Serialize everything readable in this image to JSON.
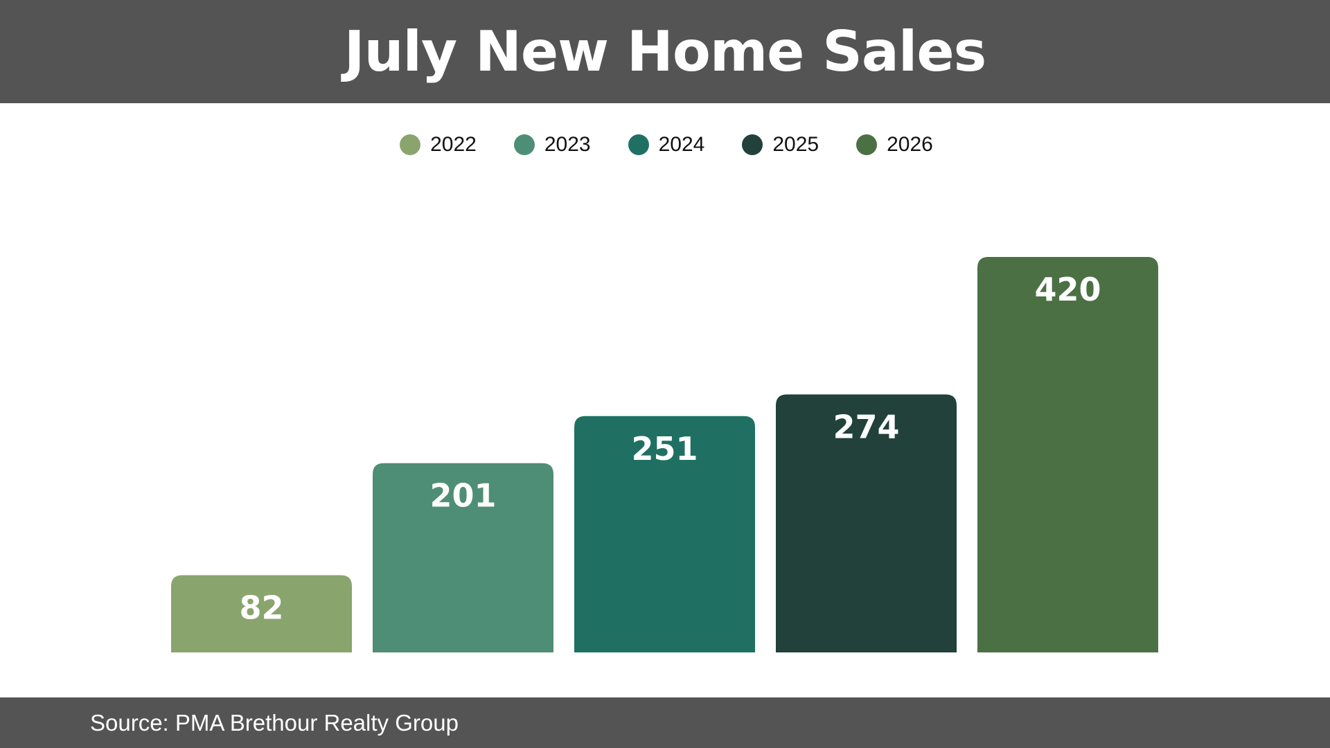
{
  "title": "July New Home Sales",
  "source": "Source: PMA Brethour Realty Group",
  "chart_data": {
    "type": "bar",
    "title": "July New Home Sales",
    "categories": [
      "2022",
      "2023",
      "2024",
      "2025",
      "2026"
    ],
    "values": [
      82,
      201,
      251,
      274,
      420
    ],
    "colors": [
      "#8aa46e",
      "#4e8e77",
      "#1f7063",
      "#21413a",
      "#4b7044"
    ],
    "legend": {
      "placement": "top-center",
      "entries": [
        "2022",
        "2023",
        "2024",
        "2025",
        "2026"
      ]
    },
    "data_labels": [
      "82",
      "201",
      "251",
      "274",
      "420"
    ],
    "grid": false,
    "xlabel": "",
    "ylabel": "",
    "ylim": [
      0,
      420
    ]
  }
}
